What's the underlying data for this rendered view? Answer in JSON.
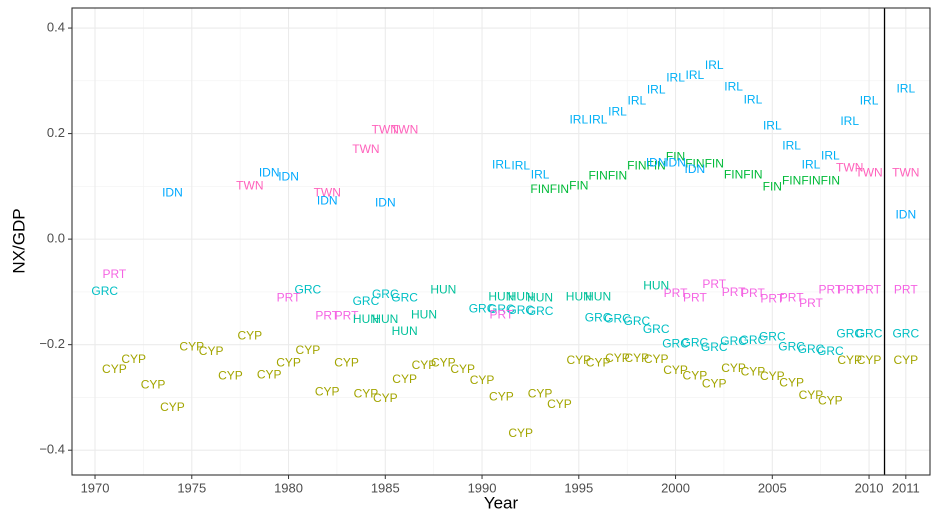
{
  "chart_data": {
    "type": "scatter",
    "x_label": "Year",
    "y_label": "NX/GDP",
    "xlim": [
      1968.81,
      2013.15
    ],
    "ylim": [
      -0.447,
      0.438
    ],
    "xticks": [
      1970,
      1975,
      1980,
      1985,
      1990,
      1995,
      2000,
      2005,
      2010,
      {
        "value": 2011.9,
        "label": "2011"
      }
    ],
    "yticks": [
      {
        "value": -0.4,
        "label": "−0.4"
      },
      {
        "value": -0.2,
        "label": "−0.2"
      },
      {
        "value": 0,
        "label": "0.0"
      },
      {
        "value": 0.2,
        "label": "0.2"
      },
      {
        "value": 0.4,
        "label": "0.4"
      }
    ],
    "vlines": [
      2010.8
    ],
    "grid": true,
    "series": [
      {
        "name": "CYP",
        "color": "#A3A500",
        "x": [
          1971,
          1972,
          1973,
          1974,
          1975,
          1976,
          1977,
          1978,
          1979,
          1980,
          1981,
          1982,
          1983,
          1984,
          1985,
          1986,
          1987,
          1988,
          1989,
          1990,
          1991,
          1992,
          1993,
          1994,
          1995,
          1996,
          1997,
          1998,
          1999,
          2000,
          2001,
          2002,
          2003,
          2004,
          2005,
          2006,
          2007,
          2008,
          2009,
          2010,
          2011.9
        ],
        "values": [
          -0.248,
          -0.229,
          -0.277,
          -0.32,
          -0.205,
          -0.214,
          -0.26,
          -0.184,
          -0.258,
          -0.235,
          -0.212,
          -0.29,
          -0.235,
          -0.294,
          -0.303,
          -0.267,
          -0.24,
          -0.235,
          -0.248,
          -0.269,
          -0.3,
          -0.369,
          -0.294,
          -0.314,
          -0.231,
          -0.235,
          -0.227,
          -0.227,
          -0.229,
          -0.25,
          -0.26,
          -0.275,
          -0.246,
          -0.252,
          -0.261,
          -0.273,
          -0.297,
          -0.307,
          -0.231,
          -0.231,
          -0.231
        ]
      },
      {
        "name": "IRL",
        "color": "#00B0F6",
        "x": [
          1991,
          1992,
          1993,
          1995,
          1996,
          1997,
          1998,
          1999,
          2000,
          2001,
          2002,
          2003,
          2004,
          2005,
          2006,
          2007,
          2008,
          2009,
          2010,
          2011.9
        ],
        "values": [
          0.14,
          0.138,
          0.121,
          0.225,
          0.225,
          0.24,
          0.261,
          0.282,
          0.305,
          0.309,
          0.328,
          0.288,
          0.263,
          0.214,
          0.176,
          0.14,
          0.157,
          0.222,
          0.261,
          0.284
        ]
      },
      {
        "name": "TWN",
        "color": "#FF62BC",
        "x": [
          1978,
          1982,
          1984,
          1985,
          1986,
          2009,
          2010,
          2011.9
        ],
        "values": [
          0.1,
          0.087,
          0.169,
          0.206,
          0.206,
          0.134,
          0.125,
          0.125
        ]
      },
      {
        "name": "GRC",
        "color": "#00BFC4",
        "x": [
          1970.5,
          1981,
          1984,
          1985,
          1986,
          1990,
          1991,
          1992,
          1993,
          1996,
          1997,
          1998,
          1999,
          2000,
          2001,
          2002,
          2003,
          2004,
          2005,
          2006,
          2007,
          2008,
          2009,
          2010,
          2011.9
        ],
        "values": [
          -0.1,
          -0.097,
          -0.119,
          -0.106,
          -0.112,
          -0.133,
          -0.134,
          -0.136,
          -0.138,
          -0.15,
          -0.152,
          -0.157,
          -0.172,
          -0.199,
          -0.197,
          -0.206,
          -0.195,
          -0.193,
          -0.186,
          -0.205,
          -0.21,
          -0.214,
          -0.18,
          -0.18,
          -0.18
        ]
      },
      {
        "name": "PRT",
        "color": "#F564E3",
        "x": [
          1971,
          1980,
          1982,
          1983,
          1991,
          2000,
          2001,
          2002,
          2003,
          2004,
          2005,
          2006,
          2007,
          2008,
          2009,
          2010,
          2011.9
        ],
        "values": [
          -0.068,
          -0.112,
          -0.146,
          -0.146,
          -0.144,
          -0.104,
          -0.112,
          -0.087,
          -0.102,
          -0.104,
          -0.114,
          -0.112,
          -0.123,
          -0.097,
          -0.097,
          -0.097,
          -0.097
        ]
      },
      {
        "name": "HUN",
        "color": "#00C19A",
        "x": [
          1984,
          1985,
          1986,
          1987,
          1988,
          1991,
          1992,
          1993,
          1995,
          1996,
          1999
        ],
        "values": [
          -0.153,
          -0.153,
          -0.176,
          -0.144,
          -0.097,
          -0.11,
          -0.11,
          -0.112,
          -0.11,
          -0.11,
          -0.089
        ]
      },
      {
        "name": "FIN",
        "color": "#00BA38",
        "x": [
          1993,
          1994,
          1995,
          1996,
          1997,
          1998,
          1999,
          2000,
          2001,
          2002,
          2003,
          2004,
          2005,
          2006,
          2007,
          2008
        ],
        "values": [
          0.093,
          0.093,
          0.1,
          0.119,
          0.119,
          0.138,
          0.138,
          0.155,
          0.142,
          0.142,
          0.121,
          0.121,
          0.098,
          0.11,
          0.11,
          0.11
        ]
      },
      {
        "name": "IDN",
        "color": "#00A9FF",
        "x": [
          1974,
          1979,
          1980,
          1982,
          1985,
          1999,
          2000,
          2001,
          2011.9
        ],
        "values": [
          0.087,
          0.125,
          0.117,
          0.072,
          0.068,
          0.144,
          0.144,
          0.131,
          0.045
        ]
      }
    ]
  }
}
